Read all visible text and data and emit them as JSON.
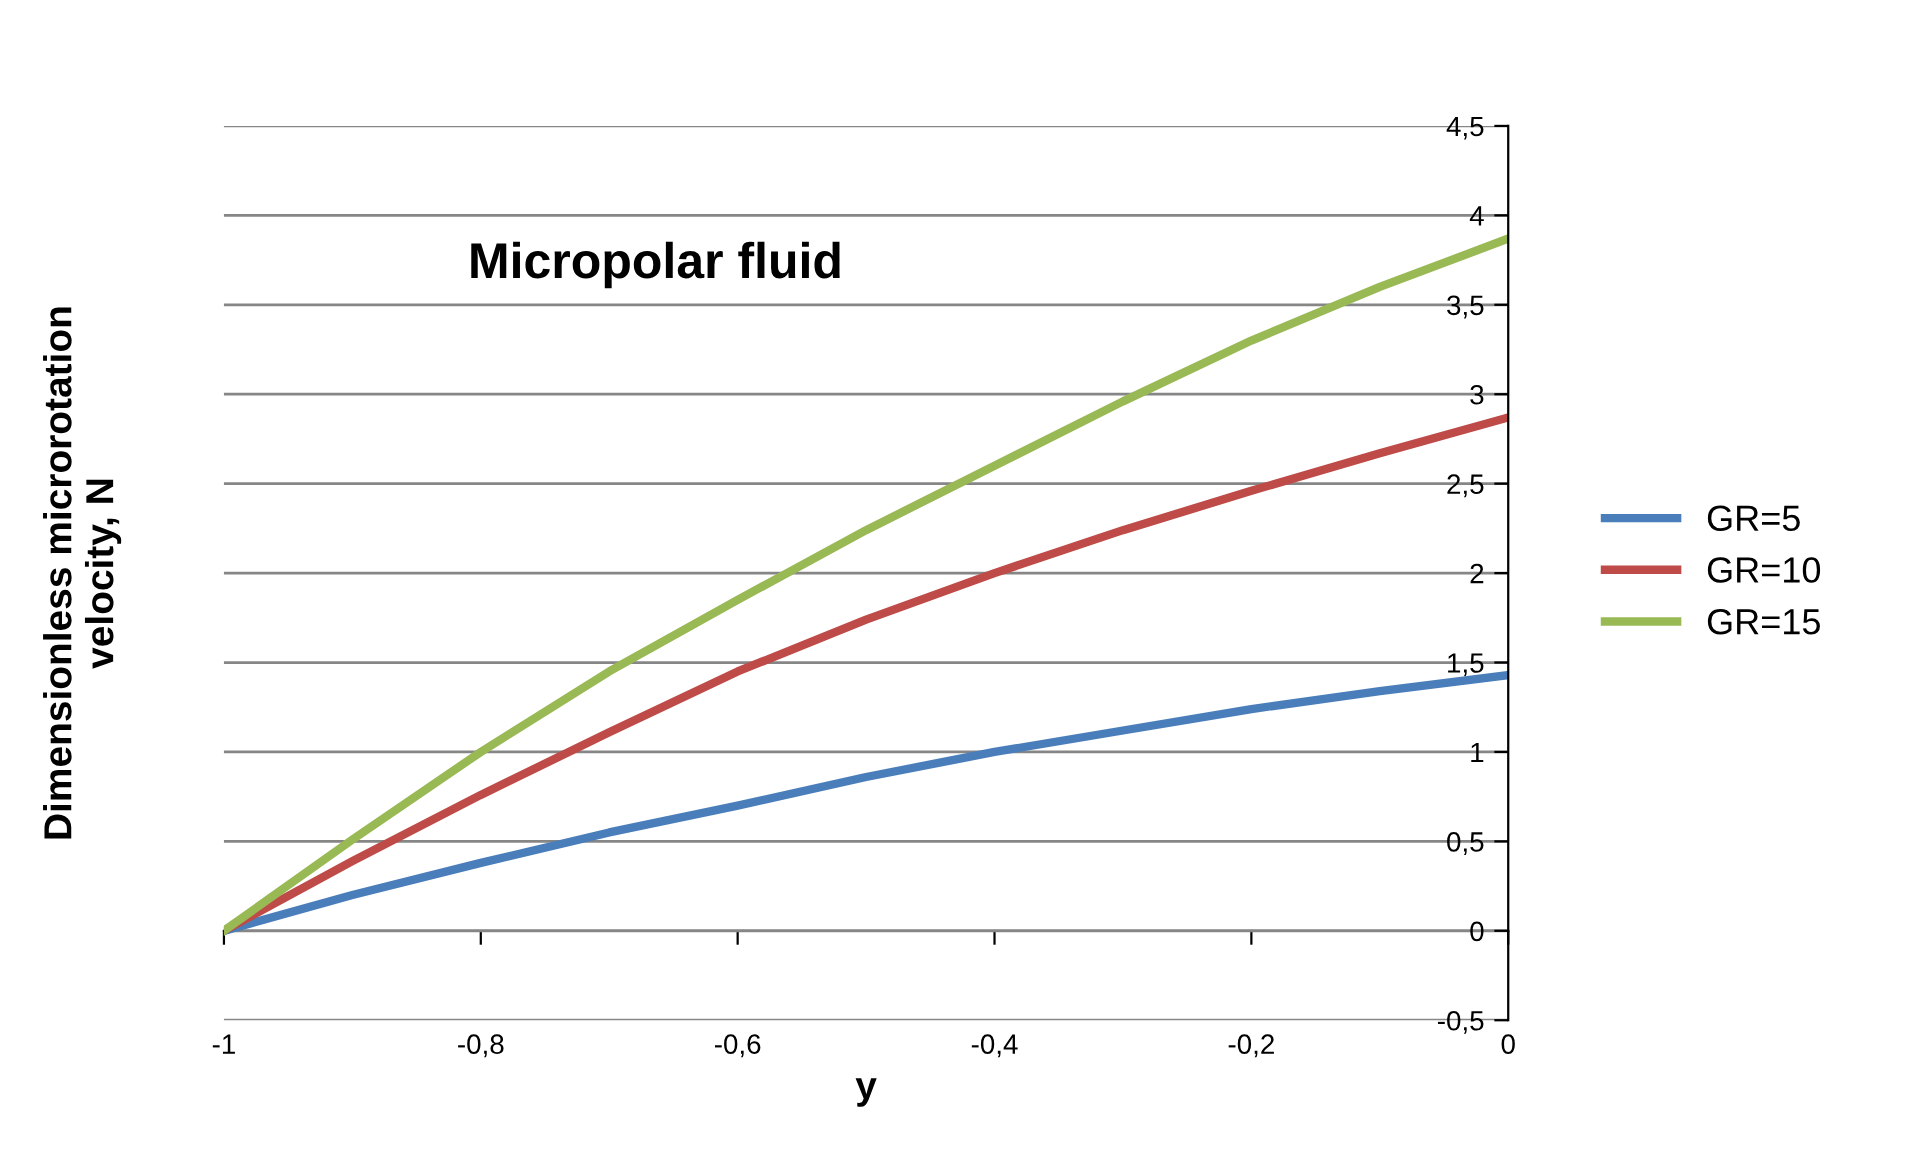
{
  "chart_data": {
    "type": "line",
    "title": "Micropolar fluid",
    "xlabel": "y",
    "ylabel": "Dimensionless microrotation\nvelocity, N",
    "x": [
      -1,
      -0.9,
      -0.8,
      -0.7,
      -0.6,
      -0.5,
      -0.4,
      -0.3,
      -0.2,
      -0.1,
      0
    ],
    "series": [
      {
        "name": "GR=5",
        "color": "#4a7ebb",
        "values": [
          0,
          0.2,
          0.38,
          0.55,
          0.7,
          0.86,
          1.0,
          1.12,
          1.24,
          1.34,
          1.43
        ]
      },
      {
        "name": "GR=10",
        "color": "#be4b48",
        "values": [
          0,
          0.39,
          0.76,
          1.11,
          1.45,
          1.74,
          2.0,
          2.24,
          2.46,
          2.67,
          2.87
        ]
      },
      {
        "name": "GR=15",
        "color": "#98b954",
        "values": [
          0,
          0.51,
          1.0,
          1.45,
          1.85,
          2.24,
          2.6,
          2.96,
          3.3,
          3.6,
          3.87
        ]
      }
    ],
    "xlim": [
      -1,
      0
    ],
    "ylim": [
      -0.5,
      4.5
    ],
    "xticks": [
      -1,
      {
        "value": -0.8,
        "label": "-0,8"
      },
      {
        "value": -0.6,
        "label": "-0,6"
      },
      {
        "value": -0.4,
        "label": "-0,4"
      },
      {
        "value": -0.2,
        "label": "-0,2"
      },
      0
    ],
    "yticks": [
      {
        "value": -0.5,
        "label": "-0,5"
      },
      0,
      {
        "value": 0.5,
        "label": "0,5"
      },
      1,
      {
        "value": 1.5,
        "label": "1,5"
      },
      2,
      {
        "value": 2.5,
        "label": "2,5"
      },
      3,
      {
        "value": 3.5,
        "label": "3,5"
      },
      4,
      {
        "value": 4.5,
        "label": "4,5"
      }
    ],
    "grid": "y",
    "legend": "right",
    "marker": "none",
    "line_style": "solid"
  }
}
